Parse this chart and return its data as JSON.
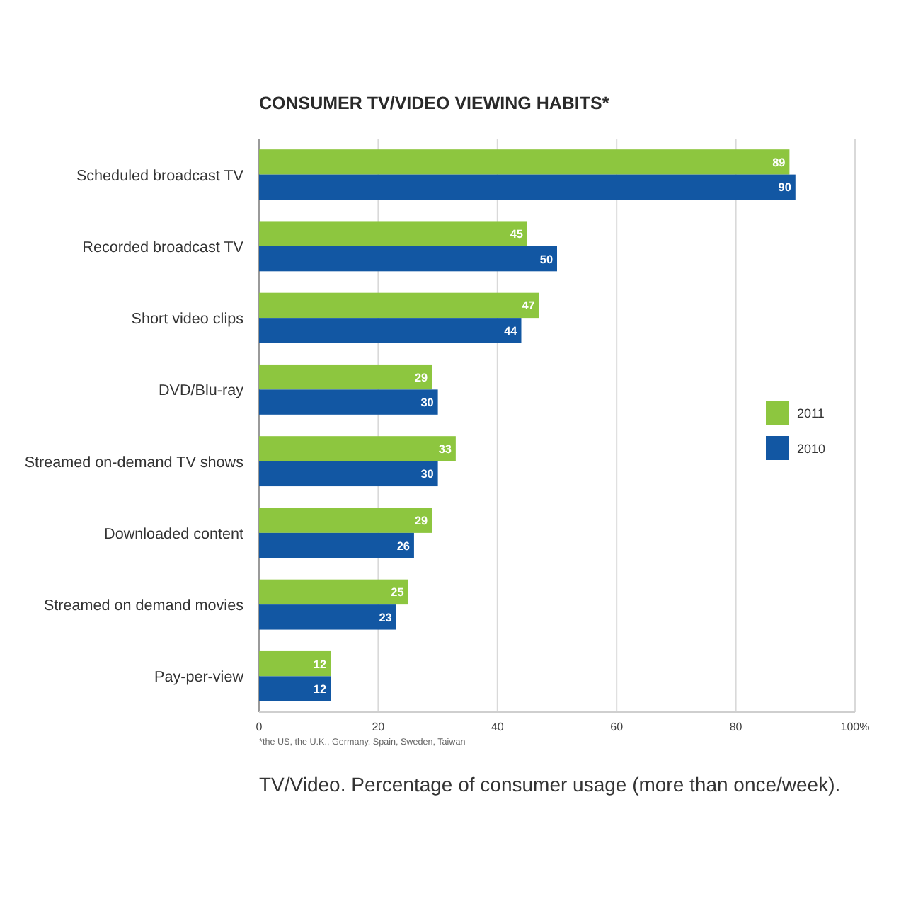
{
  "chart_data": {
    "type": "bar",
    "orientation": "horizontal",
    "title": "CONSUMER TV/VIDEO VIEWING HABITS*",
    "categories": [
      "Scheduled broadcast TV",
      "Recorded broadcast TV",
      "Short video clips",
      "DVD/Blu-ray",
      "Streamed on-demand TV shows",
      "Downloaded content",
      "Streamed on demand movies",
      "Pay-per-view"
    ],
    "series": [
      {
        "name": "2011",
        "color": "#8dc63f",
        "values": [
          89,
          45,
          47,
          29,
          33,
          29,
          25,
          12
        ]
      },
      {
        "name": "2010",
        "color": "#1257a3",
        "values": [
          90,
          50,
          44,
          30,
          30,
          26,
          23,
          12
        ]
      }
    ],
    "xlim": [
      0,
      100
    ],
    "xticks": [
      0,
      20,
      40,
      60,
      80,
      {
        "value": 100,
        "label": "100%"
      }
    ],
    "grid": "x",
    "legend": "right",
    "data_labels": true,
    "annotations": [
      "*the US, the U.K., Germany, Spain, Sweden, Taiwan",
      "TV/Video. Percentage of consumer usage (more than once/week)."
    ]
  }
}
